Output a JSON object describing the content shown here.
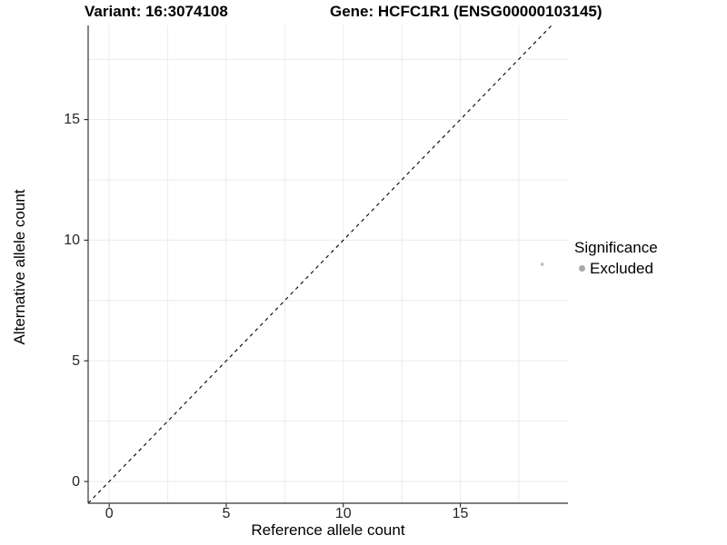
{
  "header": {
    "variant_title": "Variant: 16:3074108",
    "gene_title": "Gene: HCFC1R1 (ENSG00000103145)"
  },
  "chart_data": {
    "type": "scatter",
    "title": "Variant: 16:3074108   Gene: HCFC1R1 (ENSG00000103145)",
    "xlabel": "Reference allele count",
    "ylabel": "Alternative allele count",
    "xlim": [
      -0.9,
      19.6
    ],
    "ylim": [
      -0.9,
      18.9
    ],
    "x_ticks": [
      0,
      5,
      10,
      15
    ],
    "y_ticks": [
      0,
      5,
      10,
      15
    ],
    "grid": true,
    "grid_step": 2.5,
    "series": [
      {
        "name": "Excluded",
        "color": "#BDBDBD",
        "points": [
          {
            "x": 18.5,
            "y": 9
          }
        ]
      }
    ],
    "reference_line": {
      "type": "identity",
      "slope": 1,
      "intercept": 0,
      "linestyle": "dashed",
      "color": "#000000"
    },
    "legend": {
      "title": "Significance",
      "position": "right",
      "items": [
        {
          "label": "Excluded",
          "color": "#A9A9A9"
        }
      ]
    },
    "colors": {
      "background": "#FFFFFF",
      "grid": "#EBEBEB",
      "axis_line": "#333333",
      "tick_text": "#262626"
    }
  }
}
